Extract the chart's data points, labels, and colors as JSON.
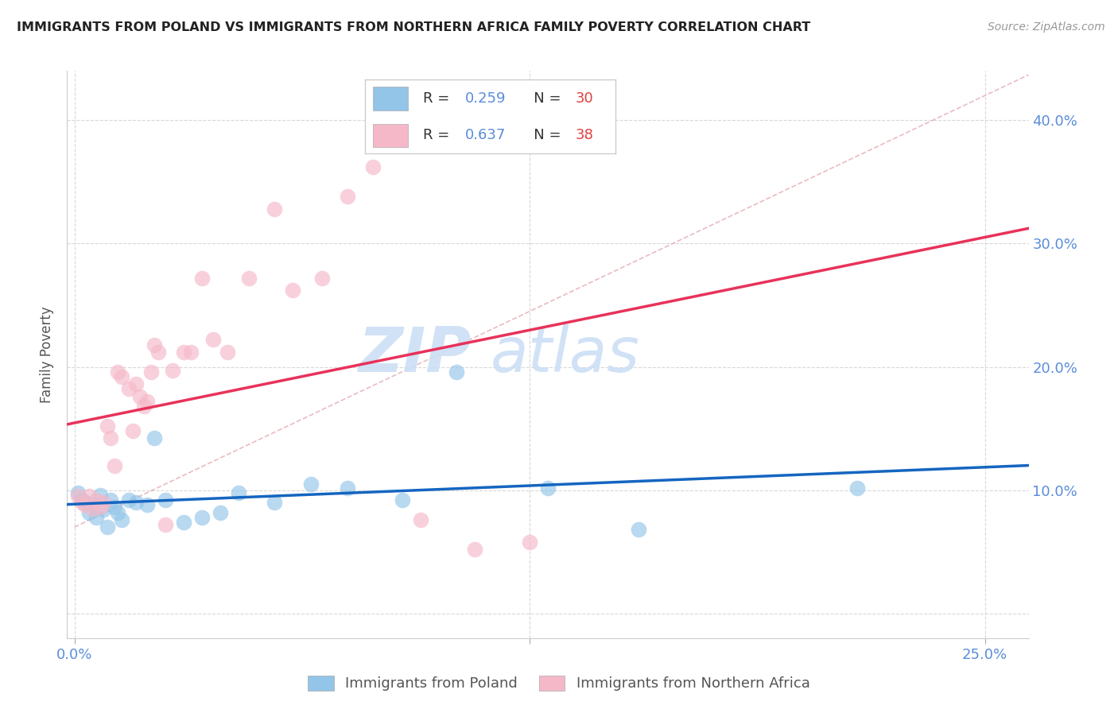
{
  "title": "IMMIGRANTS FROM POLAND VS IMMIGRANTS FROM NORTHERN AFRICA FAMILY POVERTY CORRELATION CHART",
  "source": "Source: ZipAtlas.com",
  "ylabel": "Family Poverty",
  "xlabel_poland": "Immigrants from Poland",
  "xlabel_n_africa": "Immigrants from Northern Africa",
  "xlim": [
    -0.002,
    0.262
  ],
  "ylim": [
    -0.02,
    0.44
  ],
  "r_poland": 0.259,
  "n_poland": 30,
  "r_n_africa": 0.637,
  "n_n_africa": 38,
  "color_poland": "#92c5e8",
  "color_n_africa": "#f5b8c8",
  "trend_color_poland": "#1565c0",
  "trend_color_n_africa": "#e8325a",
  "diag_color": "#e8b4bb",
  "watermark_color": "#ccdff5",
  "poland_x": [
    0.001,
    0.002,
    0.003,
    0.004,
    0.005,
    0.006,
    0.007,
    0.008,
    0.009,
    0.01,
    0.011,
    0.012,
    0.013,
    0.015,
    0.017,
    0.02,
    0.022,
    0.025,
    0.03,
    0.035,
    0.04,
    0.045,
    0.055,
    0.065,
    0.075,
    0.09,
    0.105,
    0.13,
    0.155,
    0.215
  ],
  "poland_y": [
    0.098,
    0.092,
    0.09,
    0.082,
    0.088,
    0.078,
    0.096,
    0.084,
    0.07,
    0.092,
    0.086,
    0.082,
    0.076,
    0.092,
    0.09,
    0.088,
    0.142,
    0.092,
    0.074,
    0.078,
    0.082,
    0.098,
    0.09,
    0.105,
    0.102,
    0.092,
    0.196,
    0.102,
    0.068,
    0.102
  ],
  "n_africa_x": [
    0.001,
    0.002,
    0.003,
    0.004,
    0.005,
    0.006,
    0.007,
    0.008,
    0.009,
    0.01,
    0.011,
    0.012,
    0.013,
    0.015,
    0.016,
    0.017,
    0.018,
    0.019,
    0.02,
    0.021,
    0.022,
    0.023,
    0.025,
    0.027,
    0.03,
    0.032,
    0.035,
    0.038,
    0.042,
    0.048,
    0.055,
    0.06,
    0.068,
    0.075,
    0.082,
    0.095,
    0.11,
    0.125
  ],
  "n_africa_y": [
    0.095,
    0.09,
    0.088,
    0.095,
    0.085,
    0.092,
    0.086,
    0.09,
    0.152,
    0.142,
    0.12,
    0.196,
    0.192,
    0.182,
    0.148,
    0.186,
    0.176,
    0.168,
    0.172,
    0.196,
    0.218,
    0.212,
    0.072,
    0.197,
    0.212,
    0.212,
    0.272,
    0.222,
    0.212,
    0.272,
    0.328,
    0.262,
    0.272,
    0.338,
    0.362,
    0.076,
    0.052,
    0.058
  ]
}
